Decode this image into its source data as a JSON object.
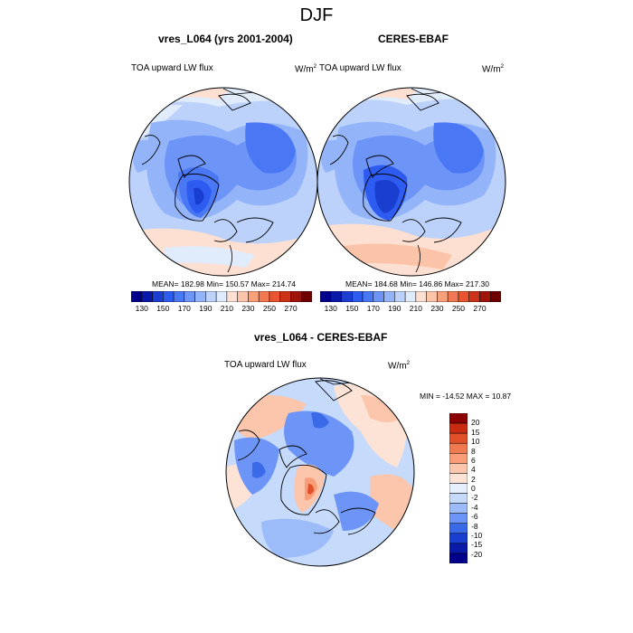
{
  "title": "DJF",
  "panels": [
    {
      "title": "vres_L064 (yrs 2001-2004)",
      "left_label": "TOA upward LW flux",
      "units_base": "W/m",
      "units_exp": "2",
      "stats": "MEAN= 182.98  Min= 150.57  Max= 214.74"
    },
    {
      "title": "CERES-EBAF",
      "left_label": "TOA upward LW flux",
      "units_base": "W/m",
      "units_exp": "2",
      "stats": "MEAN= 184.68  Min= 146.86  Max= 217.30"
    },
    {
      "title": "vres_L064 - CERES-EBAF",
      "left_label": "TOA upward LW flux",
      "units_base": "W/m",
      "units_exp": "2",
      "stats": "MIN = -14.52 MAX =  10.87"
    }
  ],
  "colorbar_abs": {
    "colors": [
      "#00008b",
      "#0a1aa8",
      "#1a3fd0",
      "#2e5cf0",
      "#4a78f5",
      "#6d94f7",
      "#94b4f9",
      "#bcd2fb",
      "#e0ebfc",
      "#fde0d2",
      "#fbc4a8",
      "#f8a07a",
      "#f27a52",
      "#e8552f",
      "#cc3319",
      "#9e1408",
      "#6e0000"
    ],
    "tick_labels": [
      "130",
      "150",
      "170",
      "190",
      "210",
      "230",
      "250",
      "270"
    ]
  },
  "colorbar_diff": {
    "colors": [
      "#00008b",
      "#0a1aa8",
      "#1a3fd0",
      "#3a6ae8",
      "#6d94f7",
      "#9cbbf9",
      "#c6dafc",
      "#e6f0fd",
      "#fde3d5",
      "#fbc6ab",
      "#f89d77",
      "#f07a50",
      "#e2502a",
      "#c82a12",
      "#8b0000"
    ],
    "tick_labels": [
      "20",
      "15",
      "10",
      "8",
      "6",
      "4",
      "2",
      "0",
      "-2",
      "-4",
      "-6",
      "-8",
      "-10",
      "-15",
      "-20"
    ]
  }
}
